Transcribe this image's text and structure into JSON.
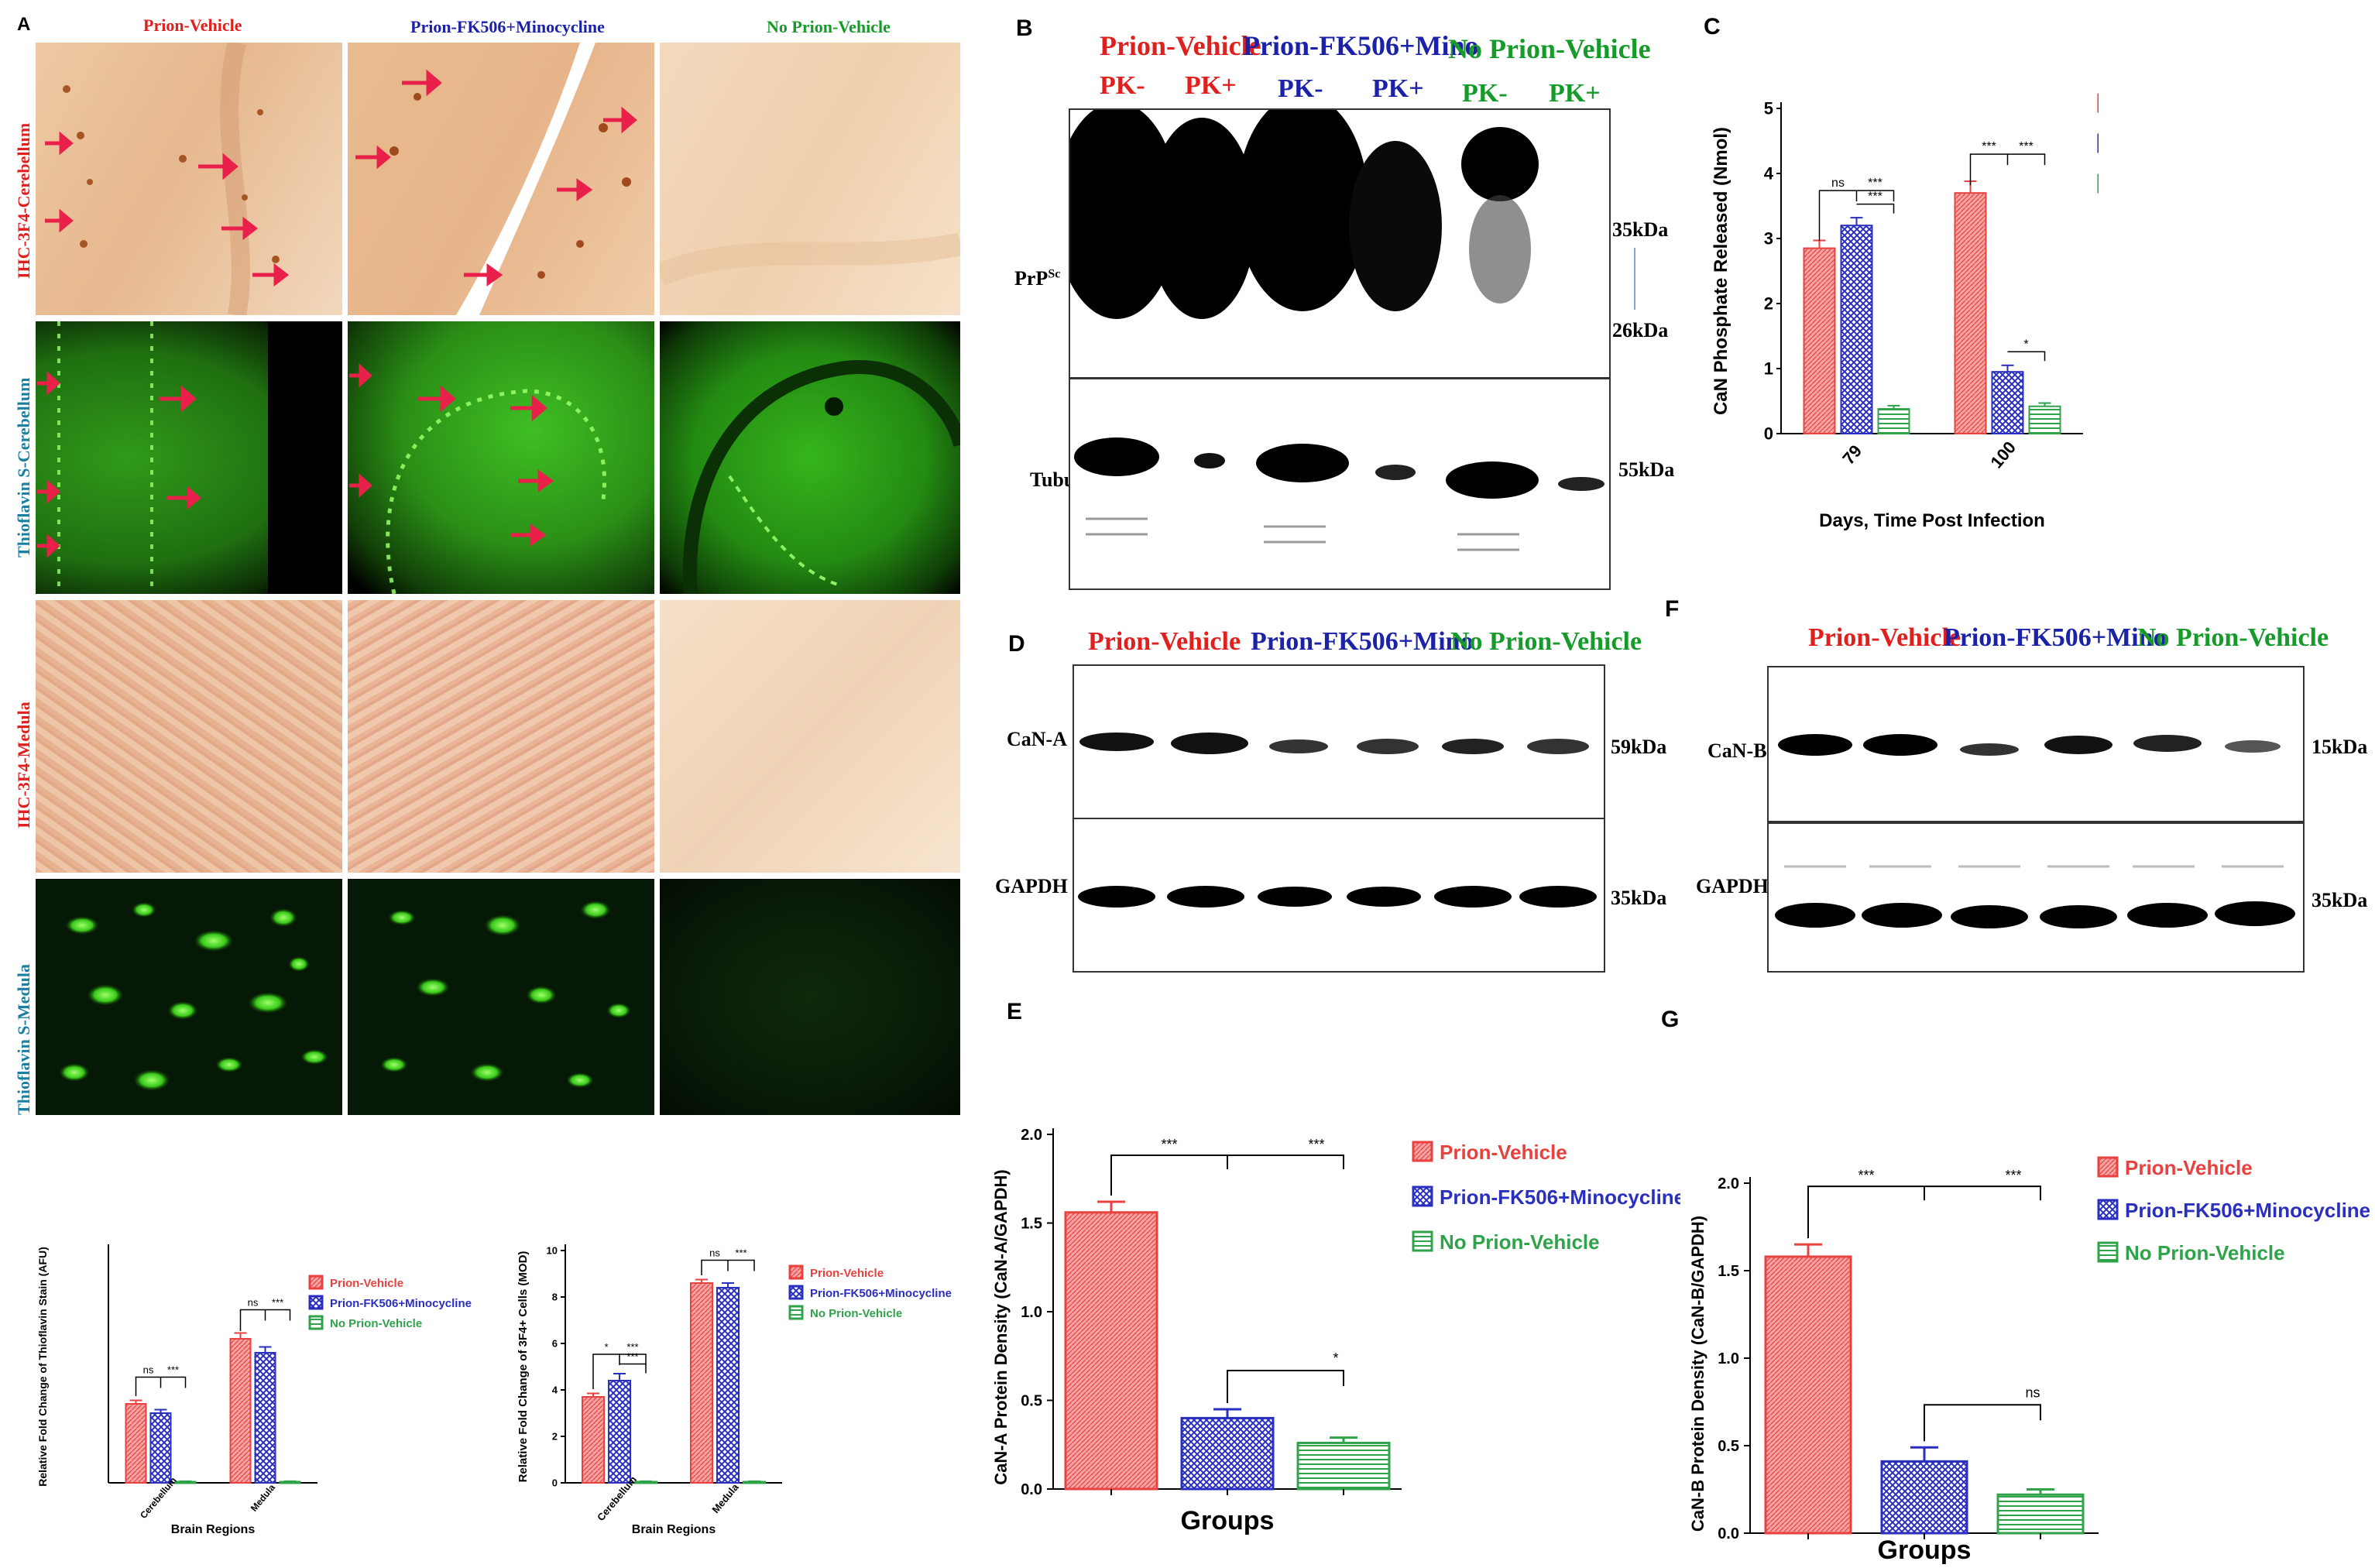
{
  "colors": {
    "prion_vehicle": "#e8413f",
    "fk506_minocycline": "#2a2fc0",
    "no_prion_vehicle": "#2fa34a"
  },
  "panelA": {
    "label": "A",
    "groups": [
      "Prion-Vehicle",
      "Prion-FK506+Minocycline",
      "No Prion-Vehicle"
    ],
    "rows": [
      "IHC-3F4-Cerebellum",
      "Thioflavin S-Cerebellum",
      "IHC-3F4-Medula",
      "Thioflavin S-Medula"
    ]
  },
  "panelB": {
    "label": "B",
    "groups": [
      "Prion-Vehicle",
      "Prion-FK506+Mino",
      "No Prion-Vehicle"
    ],
    "lanes": [
      "PK-",
      "PK+",
      "PK-",
      "PK+",
      "PK-",
      "PK+"
    ],
    "blot1_name": "PrP",
    "blot1_sup": "Sc",
    "blot2_name": "Tubulin",
    "markers": [
      "35kDa",
      "26kDa",
      "55kDa"
    ]
  },
  "panelD": {
    "label": "D",
    "groups": [
      "Prion-Vehicle",
      "Prion-FK506+Mino",
      "No Prion-Vehicle"
    ],
    "blot1_name": "CaN-A",
    "blot2_name": "GAPDH",
    "markers": [
      "59kDa",
      "35kDa"
    ]
  },
  "panelF": {
    "label": "F",
    "groups": [
      "Prion-Vehicle",
      "Prion-FK506+Mino",
      "No Prion-Vehicle"
    ],
    "blot1_name": "CaN-B",
    "blot2_name": "GAPDH",
    "markers": [
      "15kDa",
      "35kDa"
    ]
  },
  "legend_groups": [
    "Prion-Vehicle",
    "Prion-FK506+Minocycline",
    "No Prion-Vehicle"
  ],
  "chart_data": [
    {
      "id": "A-thioflavin",
      "type": "bar",
      "title": "",
      "xlabel": "Brain Regions",
      "ylabel": "Relative Fold Change of Thioflavin Stain (AFU)",
      "categories": [
        "Cerebellum",
        "Medula"
      ],
      "series": [
        {
          "name": "Prion-Vehicle",
          "values": [
            3.4,
            6.2
          ],
          "errors": [
            0.15,
            0.25
          ]
        },
        {
          "name": "Prion-FK506+Minocycline",
          "values": [
            3.0,
            5.6
          ],
          "errors": [
            0.15,
            0.25
          ]
        },
        {
          "name": "No Prion-Vehicle",
          "values": [
            0.05,
            0.05
          ],
          "errors": [
            0.02,
            0.02
          ]
        }
      ],
      "ylim": [
        0,
        10
      ],
      "significance": [
        [
          "ns",
          "***"
        ],
        [
          "ns",
          "***"
        ]
      ]
    },
    {
      "id": "A-3f4cells",
      "type": "bar",
      "title": "",
      "xlabel": "Brain Regions",
      "ylabel": "Relative Fold Change of 3F4+ Cells (MOD)",
      "categories": [
        "Cerebellum",
        "Medula"
      ],
      "yticks": [
        0,
        2,
        4,
        6,
        8,
        10
      ],
      "series": [
        {
          "name": "Prion-Vehicle",
          "values": [
            3.7,
            8.6
          ],
          "errors": [
            0.15,
            0.15
          ]
        },
        {
          "name": "Prion-FK506+Minocycline",
          "values": [
            4.4,
            8.4
          ],
          "errors": [
            0.3,
            0.2
          ]
        },
        {
          "name": "No Prion-Vehicle",
          "values": [
            0.05,
            0.05
          ],
          "errors": [
            0.02,
            0.02
          ]
        }
      ],
      "ylim": [
        0,
        10
      ],
      "significance": [
        [
          "*",
          "***",
          "***"
        ],
        [
          "ns",
          "***"
        ]
      ]
    },
    {
      "id": "C",
      "type": "bar",
      "title": "",
      "xlabel": "Days, Time Post Infection",
      "ylabel": "CaN Phosphate Released (Nmol)",
      "categories": [
        "79",
        "100"
      ],
      "yticks": [
        0,
        1,
        2,
        3,
        4,
        5
      ],
      "series": [
        {
          "name": "Prion-Vehicle",
          "values": [
            2.85,
            3.7
          ],
          "errors": [
            0.12,
            0.18
          ]
        },
        {
          "name": "Prion-FK506+Minocycline",
          "values": [
            3.2,
            0.95
          ],
          "errors": [
            0.12,
            0.1
          ]
        },
        {
          "name": "No Prion-Vehicle",
          "values": [
            0.38,
            0.42
          ],
          "errors": [
            0.05,
            0.05
          ]
        }
      ],
      "ylim": [
        0,
        5
      ],
      "significance": [
        [
          "ns",
          "***",
          "***"
        ],
        [
          "***",
          "***",
          "*"
        ]
      ]
    },
    {
      "id": "E",
      "type": "bar",
      "title": "",
      "xlabel": "Groups",
      "ylabel": "CaN-A Protein Density (CaN-A/GAPDH)",
      "categories": [
        "Prion-Vehicle",
        "Prion-FK506+Minocycline",
        "No Prion-Vehicle"
      ],
      "yticks": [
        "0.0",
        "0.5",
        "1.0",
        "1.5",
        "2.0"
      ],
      "values": [
        1.56,
        0.4,
        0.26
      ],
      "errors": [
        0.06,
        0.05,
        0.03
      ],
      "ylim": [
        0,
        2.0
      ],
      "significance": [
        "***",
        "***",
        "*"
      ]
    },
    {
      "id": "G",
      "type": "bar",
      "title": "",
      "xlabel": "Groups",
      "ylabel": "CaN-B Protein Density (CaN-B/GAPDH)",
      "categories": [
        "Prion-Vehicle",
        "Prion-FK506+Minocycline",
        "No Prion-Vehicle"
      ],
      "yticks": [
        "0.0",
        "0.5",
        "1.0",
        "1.5",
        "2.0"
      ],
      "values": [
        1.58,
        0.41,
        0.22
      ],
      "errors": [
        0.07,
        0.08,
        0.03
      ],
      "ylim": [
        0,
        2.0
      ],
      "significance": [
        "***",
        "***",
        "ns"
      ]
    }
  ],
  "panel_labels": {
    "C": "C",
    "E": "E",
    "G": "G"
  }
}
